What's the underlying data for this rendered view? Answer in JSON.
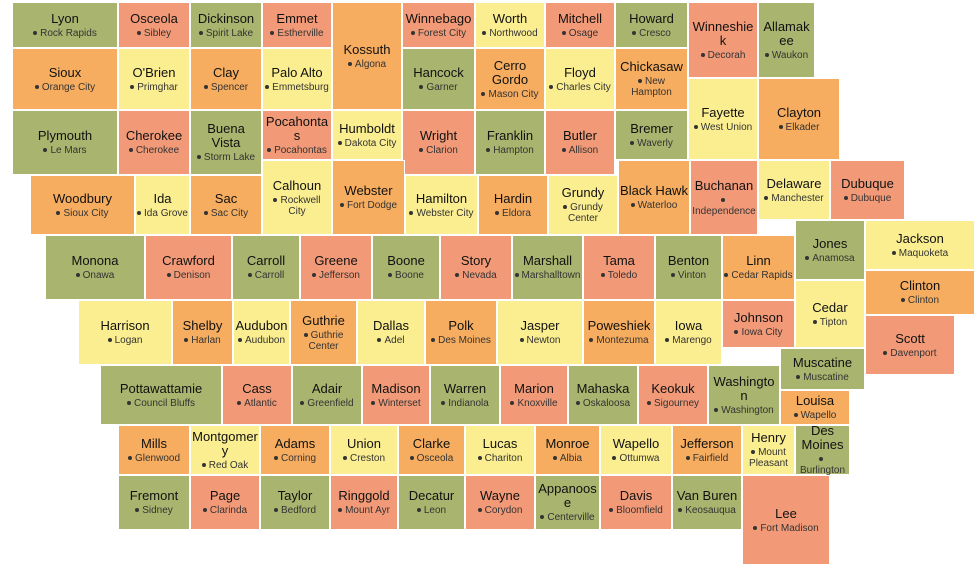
{
  "palette": {
    "G": "#a9b46e",
    "O": "#f6ad5f",
    "S": "#f29a78",
    "Y": "#fbee91"
  },
  "counties": [
    {
      "name": "Lyon",
      "seat": "Rock Rapids",
      "color": "G"
    },
    {
      "name": "Osceola",
      "seat": "Sibley",
      "color": "S"
    },
    {
      "name": "Dickinson",
      "seat": "Spirit Lake",
      "color": "G"
    },
    {
      "name": "Emmet",
      "seat": "Estherville",
      "color": "S"
    },
    {
      "name": "Kossuth",
      "seat": "Algona",
      "color": "O"
    },
    {
      "name": "Winnebago",
      "seat": "Forest City",
      "color": "S"
    },
    {
      "name": "Worth",
      "seat": "Northwood",
      "color": "Y"
    },
    {
      "name": "Mitchell",
      "seat": "Osage",
      "color": "S"
    },
    {
      "name": "Howard",
      "seat": "Cresco",
      "color": "G"
    },
    {
      "name": "Winneshiek",
      "seat": "Decorah",
      "color": "S"
    },
    {
      "name": "Allamakee",
      "seat": "Waukon",
      "color": "G"
    },
    {
      "name": "Sioux",
      "seat": "Orange City",
      "color": "O"
    },
    {
      "name": "O'Brien",
      "seat": "Primghar",
      "color": "Y"
    },
    {
      "name": "Clay",
      "seat": "Spencer",
      "color": "O"
    },
    {
      "name": "Palo Alto",
      "seat": "Emmetsburg",
      "color": "Y"
    },
    {
      "name": "Hancock",
      "seat": "Garner",
      "color": "G"
    },
    {
      "name": "Cerro Gordo",
      "seat": "Mason City",
      "color": "O"
    },
    {
      "name": "Floyd",
      "seat": "Charles City",
      "color": "Y"
    },
    {
      "name": "Chickasaw",
      "seat": "New Hampton",
      "color": "O"
    },
    {
      "name": "Fayette",
      "seat": "West Union",
      "color": "Y"
    },
    {
      "name": "Clayton",
      "seat": "Elkader",
      "color": "O"
    },
    {
      "name": "Plymouth",
      "seat": "Le Mars",
      "color": "G"
    },
    {
      "name": "Cherokee",
      "seat": "Cherokee",
      "color": "S"
    },
    {
      "name": "Buena Vista",
      "seat": "Storm Lake",
      "color": "G"
    },
    {
      "name": "Pocahontas",
      "seat": "Pocahontas",
      "color": "S"
    },
    {
      "name": "Humboldt",
      "seat": "Dakota City",
      "color": "Y"
    },
    {
      "name": "Wright",
      "seat": "Clarion",
      "color": "S"
    },
    {
      "name": "Franklin",
      "seat": "Hampton",
      "color": "G"
    },
    {
      "name": "Butler",
      "seat": "Allison",
      "color": "S"
    },
    {
      "name": "Bremer",
      "seat": "Waverly",
      "color": "G"
    },
    {
      "name": "Woodbury",
      "seat": "Sioux City",
      "color": "O"
    },
    {
      "name": "Ida",
      "seat": "Ida Grove",
      "color": "Y"
    },
    {
      "name": "Sac",
      "seat": "Sac City",
      "color": "O"
    },
    {
      "name": "Calhoun",
      "seat": "Rockwell City",
      "color": "Y"
    },
    {
      "name": "Webster",
      "seat": "Fort Dodge",
      "color": "O"
    },
    {
      "name": "Hamilton",
      "seat": "Webster City",
      "color": "Y"
    },
    {
      "name": "Hardin",
      "seat": "Eldora",
      "color": "O"
    },
    {
      "name": "Grundy",
      "seat": "Grundy Center",
      "color": "Y"
    },
    {
      "name": "Black Hawk",
      "seat": "Waterloo",
      "color": "O"
    },
    {
      "name": "Buchanan",
      "seat": "Independence",
      "color": "S"
    },
    {
      "name": "Delaware",
      "seat": "Manchester",
      "color": "Y"
    },
    {
      "name": "Dubuque",
      "seat": "Dubuque",
      "color": "S"
    },
    {
      "name": "Monona",
      "seat": "Onawa",
      "color": "G"
    },
    {
      "name": "Crawford",
      "seat": "Denison",
      "color": "S"
    },
    {
      "name": "Carroll",
      "seat": "Carroll",
      "color": "G"
    },
    {
      "name": "Greene",
      "seat": "Jefferson",
      "color": "S"
    },
    {
      "name": "Boone",
      "seat": "Boone",
      "color": "G"
    },
    {
      "name": "Story",
      "seat": "Nevada",
      "color": "S"
    },
    {
      "name": "Marshall",
      "seat": "Marshalltown",
      "color": "G"
    },
    {
      "name": "Tama",
      "seat": "Toledo",
      "color": "S"
    },
    {
      "name": "Benton",
      "seat": "Vinton",
      "color": "G"
    },
    {
      "name": "Linn",
      "seat": "Cedar Rapids",
      "color": "O"
    },
    {
      "name": "Jones",
      "seat": "Anamosa",
      "color": "G"
    },
    {
      "name": "Jackson",
      "seat": "Maquoketa",
      "color": "Y"
    },
    {
      "name": "Harrison",
      "seat": "Logan",
      "color": "Y"
    },
    {
      "name": "Shelby",
      "seat": "Harlan",
      "color": "O"
    },
    {
      "name": "Audubon",
      "seat": "Audubon",
      "color": "Y"
    },
    {
      "name": "Guthrie",
      "seat": "Guthrie Center",
      "color": "O"
    },
    {
      "name": "Dallas",
      "seat": "Adel",
      "color": "Y"
    },
    {
      "name": "Polk",
      "seat": "Des Moines",
      "color": "O"
    },
    {
      "name": "Jasper",
      "seat": "Newton",
      "color": "Y"
    },
    {
      "name": "Poweshiek",
      "seat": "Montezuma",
      "color": "O"
    },
    {
      "name": "Iowa",
      "seat": "Marengo",
      "color": "Y"
    },
    {
      "name": "Johnson",
      "seat": "Iowa City",
      "color": "S"
    },
    {
      "name": "Cedar",
      "seat": "Tipton",
      "color": "Y"
    },
    {
      "name": "Clinton",
      "seat": "Clinton",
      "color": "O"
    },
    {
      "name": "Scott",
      "seat": "Davenport",
      "color": "S"
    },
    {
      "name": "Pottawattamie",
      "seat": "Council Bluffs",
      "color": "G"
    },
    {
      "name": "Cass",
      "seat": "Atlantic",
      "color": "S"
    },
    {
      "name": "Adair",
      "seat": "Greenfield",
      "color": "G"
    },
    {
      "name": "Madison",
      "seat": "Winterset",
      "color": "S"
    },
    {
      "name": "Warren",
      "seat": "Indianola",
      "color": "G"
    },
    {
      "name": "Marion",
      "seat": "Knoxville",
      "color": "S"
    },
    {
      "name": "Mahaska",
      "seat": "Oskaloosa",
      "color": "G"
    },
    {
      "name": "Keokuk",
      "seat": "Sigourney",
      "color": "S"
    },
    {
      "name": "Washington",
      "seat": "Washington",
      "color": "G"
    },
    {
      "name": "Muscatine",
      "seat": "Muscatine",
      "color": "G"
    },
    {
      "name": "Louisa",
      "seat": "Wapello",
      "color": "O"
    },
    {
      "name": "Mills",
      "seat": "Glenwood",
      "color": "O"
    },
    {
      "name": "Montgomery",
      "seat": "Red Oak",
      "color": "Y"
    },
    {
      "name": "Adams",
      "seat": "Corning",
      "color": "O"
    },
    {
      "name": "Union",
      "seat": "Creston",
      "color": "Y"
    },
    {
      "name": "Clarke",
      "seat": "Osceola",
      "color": "O"
    },
    {
      "name": "Lucas",
      "seat": "Chariton",
      "color": "Y"
    },
    {
      "name": "Monroe",
      "seat": "Albia",
      "color": "O"
    },
    {
      "name": "Wapello",
      "seat": "Ottumwa",
      "color": "Y"
    },
    {
      "name": "Jefferson",
      "seat": "Fairfield",
      "color": "O"
    },
    {
      "name": "Henry",
      "seat": "Mount Pleasant",
      "color": "Y"
    },
    {
      "name": "Des Moines",
      "seat": "Burlington",
      "color": "G"
    },
    {
      "name": "Fremont",
      "seat": "Sidney",
      "color": "G"
    },
    {
      "name": "Page",
      "seat": "Clarinda",
      "color": "S"
    },
    {
      "name": "Taylor",
      "seat": "Bedford",
      "color": "G"
    },
    {
      "name": "Ringgold",
      "seat": "Mount Ayr",
      "color": "S"
    },
    {
      "name": "Decatur",
      "seat": "Leon",
      "color": "G"
    },
    {
      "name": "Wayne",
      "seat": "Corydon",
      "color": "S"
    },
    {
      "name": "Appanoose",
      "seat": "Centerville",
      "color": "G"
    },
    {
      "name": "Davis",
      "seat": "Bloomfield",
      "color": "S"
    },
    {
      "name": "Van Buren",
      "seat": "Keosauqua",
      "color": "G"
    },
    {
      "name": "Lee",
      "seat": "Fort Madison",
      "color": "S"
    }
  ]
}
